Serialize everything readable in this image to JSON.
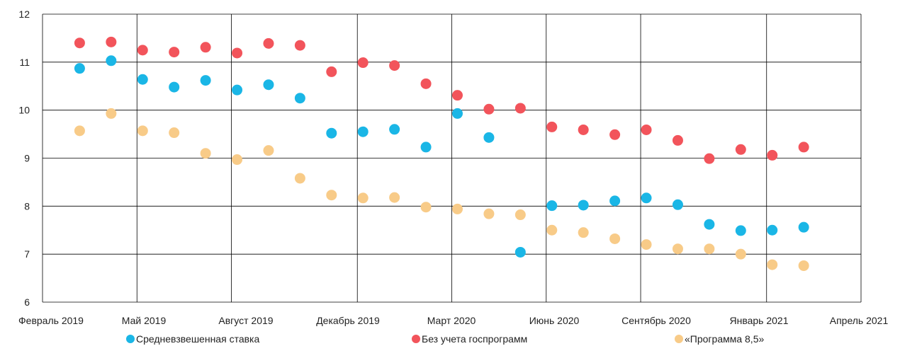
{
  "chart_data": {
    "type": "scatter",
    "title": "",
    "xlabel": "",
    "ylabel": "",
    "ylim": [
      6,
      12
    ],
    "y_ticks": [
      "6",
      "7",
      "8",
      "9",
      "10",
      "11",
      "12"
    ],
    "x_ticks": [
      "Февраль 2019",
      "Май 2019",
      "Август 2019",
      "Декабрь 2019",
      "Март 2020",
      "Июнь 2020",
      "Сентябрь 2020",
      "Январь 2021",
      "Апрель 2021"
    ],
    "grid": true,
    "legend_position": "bottom",
    "x_points": [
      "2019-03",
      "2019-04",
      "2019-05",
      "2019-06",
      "2019-07",
      "2019-08",
      "2019-09",
      "2019-10",
      "2019-11",
      "2019-12",
      "2020-01",
      "2020-02",
      "2020-03",
      "2020-04",
      "2020-05",
      "2020-06",
      "2020-07",
      "2020-08",
      "2020-09",
      "2020-10",
      "2020-11",
      "2020-12",
      "2021-01",
      "2021-02"
    ],
    "series": [
      {
        "name": "Средневзвешенная ставка",
        "color": "#1ab6e6",
        "values": [
          10.87,
          11.03,
          10.64,
          10.48,
          10.62,
          10.42,
          10.53,
          10.25,
          9.52,
          9.55,
          9.6,
          9.23,
          9.93,
          9.43,
          7.04,
          8.01,
          8.02,
          8.11,
          8.17,
          8.03,
          7.62,
          7.49,
          7.5,
          7.56
        ]
      },
      {
        "name": "Без учета госпрограмм",
        "color": "#f2545b",
        "values": [
          11.4,
          11.42,
          11.25,
          11.21,
          11.31,
          11.19,
          11.39,
          11.35,
          10.8,
          10.99,
          10.93,
          10.55,
          10.31,
          10.02,
          10.04,
          9.65,
          9.59,
          9.49,
          9.59,
          9.37,
          8.99,
          9.18,
          9.06,
          9.23
        ]
      },
      {
        "name": "«Программа 8,5»",
        "color": "#f8cb88",
        "values": [
          9.57,
          9.93,
          9.57,
          9.53,
          9.1,
          8.97,
          9.16,
          8.58,
          8.23,
          8.17,
          8.18,
          7.98,
          7.94,
          7.84,
          7.82,
          7.5,
          7.45,
          7.32,
          7.2,
          7.11,
          7.11,
          7.0,
          6.78,
          6.76
        ]
      }
    ]
  }
}
